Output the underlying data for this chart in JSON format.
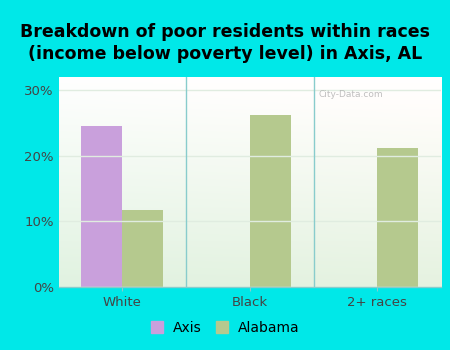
{
  "title": "Breakdown of poor residents within races\n(income below poverty level) in Axis, AL",
  "categories": [
    "White",
    "Black",
    "2+ races"
  ],
  "axis_values": [
    24.5,
    0,
    0
  ],
  "alabama_values": [
    11.7,
    26.2,
    21.2
  ],
  "axis_color": "#c9a0dc",
  "alabama_color": "#b5c98e",
  "bg_outer": "#00e8e8",
  "ylim": [
    0,
    32
  ],
  "yticks": [
    0,
    10,
    20,
    30
  ],
  "yticklabels": [
    "0%",
    "10%",
    "20%",
    "30%"
  ],
  "bar_width": 0.32,
  "title_fontsize": 12.5,
  "axis_label": "Axis",
  "alabama_label": "Alabama",
  "watermark": "City-Data.com",
  "grid_color": "#e0ece0",
  "separator_color": "#88cccc"
}
